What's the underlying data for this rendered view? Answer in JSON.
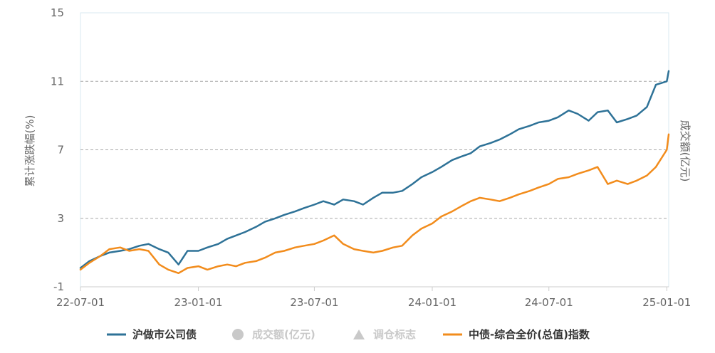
{
  "chart_data": {
    "type": "line",
    "ylabel_left": "累计涨跌幅(%)",
    "ylabel_right": "成交额(亿元)",
    "ylim": [
      -1,
      15
    ],
    "yticks": [
      "15",
      "11",
      "7",
      "3",
      "-1"
    ],
    "xlim": [
      "2022-07-01",
      "2025-01-04"
    ],
    "xticks": [
      {
        "date": "2022-07-01",
        "label": "22-07-01"
      },
      {
        "date": "2023-01-01",
        "label": "23-01-01"
      },
      {
        "date": "2023-07-01",
        "label": "23-07-01"
      },
      {
        "date": "2024-01-01",
        "label": "24-01-01"
      },
      {
        "date": "2024-07-01",
        "label": "24-07-01"
      },
      {
        "date": "2025-01-01",
        "label": "25-01-01"
      }
    ],
    "grid": true,
    "legend_position": "bottom",
    "colors": {
      "blue": "#2e7297",
      "orange": "#f28c1c",
      "grey": "#c9c9c9",
      "axis": "#cccccc",
      "grid": "#a8a8a8",
      "frame": "#d9e9f2"
    },
    "legend": [
      {
        "label": "沪做市公司债",
        "marker": "line",
        "color": "#2e7297",
        "active": true
      },
      {
        "label": "成交额(亿元)",
        "marker": "circle",
        "color": "#c9c9c9",
        "active": false
      },
      {
        "label": "调仓标志",
        "marker": "triangle",
        "color": "#c9c9c9",
        "active": false
      },
      {
        "label": "中债-综合全价(总值)指数",
        "marker": "line",
        "color": "#f28c1c",
        "active": true
      }
    ],
    "series": [
      {
        "name": "沪做市公司债",
        "color": "#2e7297",
        "x": [
          "2022-07-01",
          "2022-07-15",
          "2022-08-01",
          "2022-08-15",
          "2022-09-01",
          "2022-09-15",
          "2022-10-01",
          "2022-10-15",
          "2022-11-01",
          "2022-11-15",
          "2022-12-01",
          "2022-12-15",
          "2023-01-01",
          "2023-01-15",
          "2023-02-01",
          "2023-02-15",
          "2023-03-01",
          "2023-03-15",
          "2023-04-01",
          "2023-04-15",
          "2023-05-01",
          "2023-05-15",
          "2023-06-01",
          "2023-06-15",
          "2023-07-01",
          "2023-07-15",
          "2023-08-01",
          "2023-08-15",
          "2023-09-01",
          "2023-09-15",
          "2023-10-01",
          "2023-10-15",
          "2023-11-01",
          "2023-11-15",
          "2023-12-01",
          "2023-12-15",
          "2024-01-01",
          "2024-01-15",
          "2024-02-01",
          "2024-02-15",
          "2024-03-01",
          "2024-03-15",
          "2024-04-01",
          "2024-04-15",
          "2024-05-01",
          "2024-05-15",
          "2024-06-01",
          "2024-06-15",
          "2024-07-01",
          "2024-07-15",
          "2024-08-01",
          "2024-08-15",
          "2024-09-01",
          "2024-09-15",
          "2024-10-01",
          "2024-10-15",
          "2024-11-01",
          "2024-11-15",
          "2024-12-01",
          "2024-12-15",
          "2025-01-01",
          "2025-01-04"
        ],
        "values": [
          0.1,
          0.5,
          0.8,
          1.0,
          1.1,
          1.2,
          1.4,
          1.5,
          1.2,
          1.0,
          0.3,
          1.1,
          1.1,
          1.3,
          1.5,
          1.8,
          2.0,
          2.2,
          2.5,
          2.8,
          3.0,
          3.2,
          3.4,
          3.6,
          3.8,
          4.0,
          3.8,
          4.1,
          4.0,
          3.8,
          4.2,
          4.5,
          4.5,
          4.6,
          5.0,
          5.4,
          5.7,
          6.0,
          6.4,
          6.6,
          6.8,
          7.2,
          7.4,
          7.6,
          7.9,
          8.2,
          8.4,
          8.6,
          8.7,
          8.9,
          9.3,
          9.1,
          8.7,
          9.2,
          9.3,
          8.6,
          8.8,
          9.0,
          9.5,
          10.8,
          11.0,
          11.6
        ]
      },
      {
        "name": "中债-综合全价(总值)指数",
        "color": "#f28c1c",
        "x": [
          "2022-07-01",
          "2022-07-15",
          "2022-08-01",
          "2022-08-15",
          "2022-09-01",
          "2022-09-15",
          "2022-10-01",
          "2022-10-15",
          "2022-11-01",
          "2022-11-15",
          "2022-12-01",
          "2022-12-15",
          "2023-01-01",
          "2023-01-15",
          "2023-02-01",
          "2023-02-15",
          "2023-03-01",
          "2023-03-15",
          "2023-04-01",
          "2023-04-15",
          "2023-05-01",
          "2023-05-15",
          "2023-06-01",
          "2023-06-15",
          "2023-07-01",
          "2023-07-15",
          "2023-08-01",
          "2023-08-15",
          "2023-09-01",
          "2023-09-15",
          "2023-10-01",
          "2023-10-15",
          "2023-11-01",
          "2023-11-15",
          "2023-12-01",
          "2023-12-15",
          "2024-01-01",
          "2024-01-15",
          "2024-02-01",
          "2024-02-15",
          "2024-03-01",
          "2024-03-15",
          "2024-04-01",
          "2024-04-15",
          "2024-05-01",
          "2024-05-15",
          "2024-06-01",
          "2024-06-15",
          "2024-07-01",
          "2024-07-15",
          "2024-08-01",
          "2024-08-15",
          "2024-09-01",
          "2024-09-15",
          "2024-10-01",
          "2024-10-15",
          "2024-11-01",
          "2024-11-15",
          "2024-12-01",
          "2024-12-15",
          "2025-01-01",
          "2025-01-04"
        ],
        "values": [
          0.0,
          0.4,
          0.8,
          1.2,
          1.3,
          1.1,
          1.2,
          1.1,
          0.3,
          0.0,
          -0.2,
          0.1,
          0.2,
          0.0,
          0.2,
          0.3,
          0.2,
          0.4,
          0.5,
          0.7,
          1.0,
          1.1,
          1.3,
          1.4,
          1.5,
          1.7,
          2.0,
          1.5,
          1.2,
          1.1,
          1.0,
          1.1,
          1.3,
          1.4,
          2.0,
          2.4,
          2.7,
          3.1,
          3.4,
          3.7,
          4.0,
          4.2,
          4.1,
          4.0,
          4.2,
          4.4,
          4.6,
          4.8,
          5.0,
          5.3,
          5.4,
          5.6,
          5.8,
          6.0,
          5.0,
          5.2,
          5.0,
          5.2,
          5.5,
          6.0,
          7.0,
          7.9
        ]
      }
    ]
  }
}
